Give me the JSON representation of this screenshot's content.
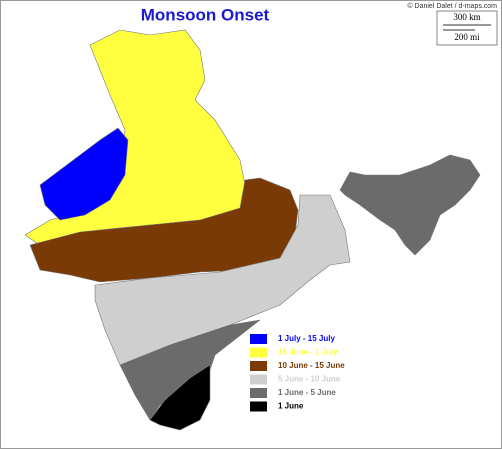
{
  "title": "Monsoon Onset",
  "credit": "© Daniel Dalet / d-maps.com",
  "scale": {
    "km": "300 km",
    "mi": "200 mi"
  },
  "legend": [
    {
      "label": "1 July - 15 July",
      "color": "#0000ff"
    },
    {
      "label": "15 June - 1 July",
      "color": "#ffff40"
    },
    {
      "label": "10 June - 15 June",
      "color": "#7a3a06"
    },
    {
      "label": "5 June - 10 June",
      "color": "#cfcfcf"
    },
    {
      "label": "1 June - 5 June",
      "color": "#6b6b6b"
    },
    {
      "label": "1 June",
      "color": "#000000"
    }
  ]
}
